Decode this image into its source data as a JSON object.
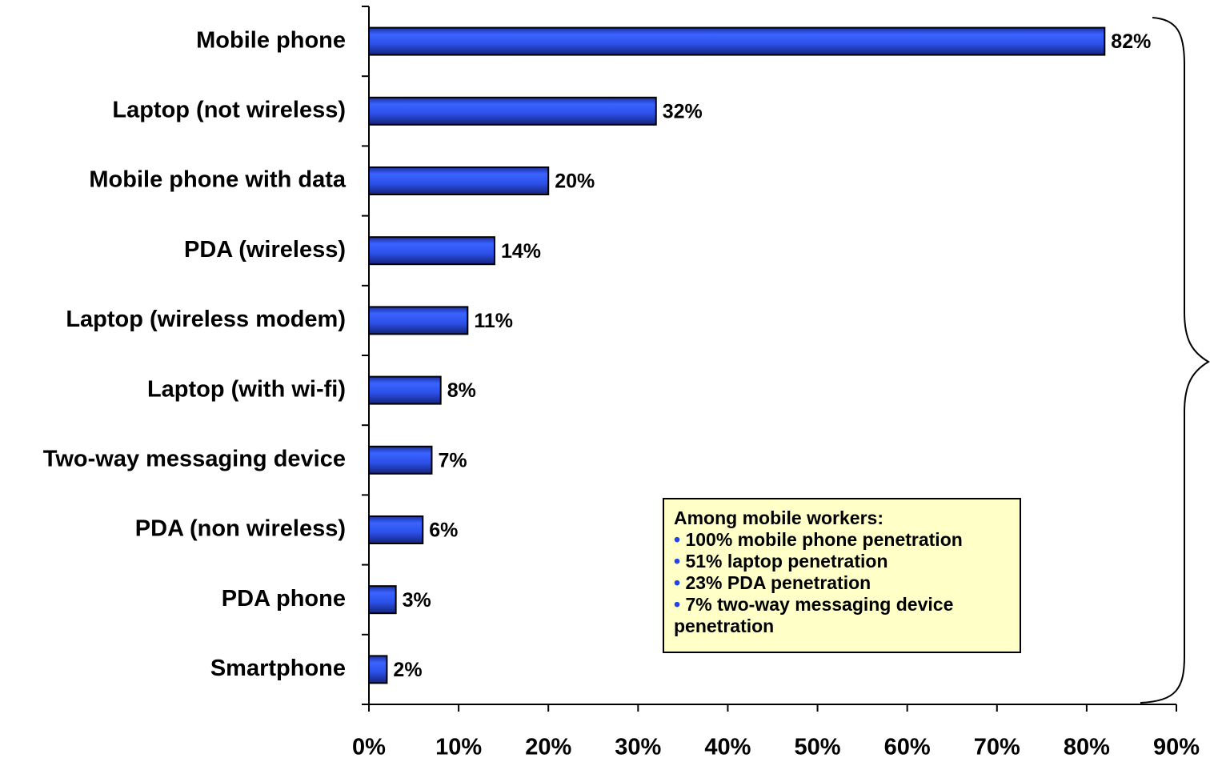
{
  "chart_data": {
    "type": "hbar",
    "categories": [
      "Mobile phone",
      "Laptop (not wireless)",
      "Mobile phone with data",
      "PDA (wireless)",
      "Laptop (wireless modem)",
      "Laptop (with wi-fi)",
      "Two-way messaging device",
      "PDA (non wireless)",
      "PDA phone",
      "Smartphone"
    ],
    "values": [
      82,
      32,
      20,
      14,
      11,
      8,
      7,
      6,
      3,
      2
    ],
    "value_labels": [
      "82%",
      "32%",
      "20%",
      "14%",
      "11%",
      "8%",
      "7%",
      "6%",
      "3%",
      "2%"
    ],
    "color": "#2c50e8",
    "xlim": [
      0,
      90
    ],
    "xticks": [
      {
        "value": 0,
        "label": "0%"
      },
      {
        "value": 10,
        "label": "10%"
      },
      {
        "value": 20,
        "label": "20%"
      },
      {
        "value": 30,
        "label": "30%"
      },
      {
        "value": 40,
        "label": "40%"
      },
      {
        "value": 50,
        "label": "50%"
      },
      {
        "value": 60,
        "label": "60%"
      },
      {
        "value": 70,
        "label": "70%"
      },
      {
        "value": 80,
        "label": "80%"
      },
      {
        "value": 90,
        "label": "90%"
      }
    ],
    "grid": false,
    "annotation": {
      "title": "Among mobile workers:",
      "items": [
        "100% mobile phone penetration",
        "51% laptop penetration",
        "23% PDA penetration",
        "7% two-way messaging device penetration"
      ]
    }
  }
}
